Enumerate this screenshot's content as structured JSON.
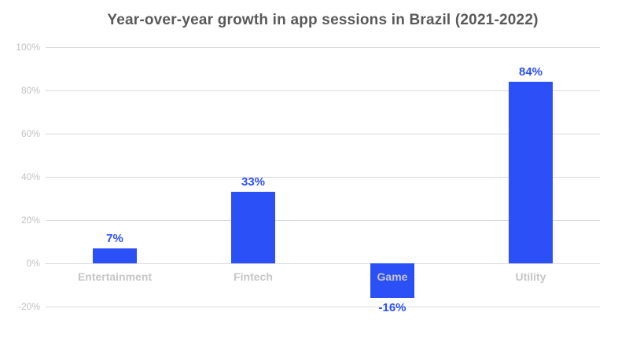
{
  "chart": {
    "title": "Year-over-year growth in app sessions in Brazil (2021-2022)"
  },
  "chart_data": {
    "type": "bar",
    "title": "Year-over-year growth in app sessions in Brazil (2021-2022)",
    "categories": [
      "Entertainment",
      "Fintech",
      "Game",
      "Utility"
    ],
    "values": [
      7,
      33,
      -16,
      84
    ],
    "value_labels": [
      "7%",
      "33%",
      "-16%",
      "84%"
    ],
    "xlabel": "",
    "ylabel": "",
    "ylim": [
      -20,
      100
    ],
    "yticks": [
      100,
      80,
      60,
      40,
      20,
      0,
      -20
    ],
    "ytick_labels": [
      "100%",
      "80%",
      "60%",
      "40%",
      "20%",
      "0%",
      "-20%"
    ],
    "grid": true,
    "legend": false,
    "colors": {
      "bar": "#2b50f8",
      "value_label": "#2b50f8",
      "category_label": "#c6c6c6",
      "tick_label": "#c2c2c2",
      "gridline": "#d9d9d9",
      "title": "#595959",
      "background": "#ffffff"
    }
  }
}
